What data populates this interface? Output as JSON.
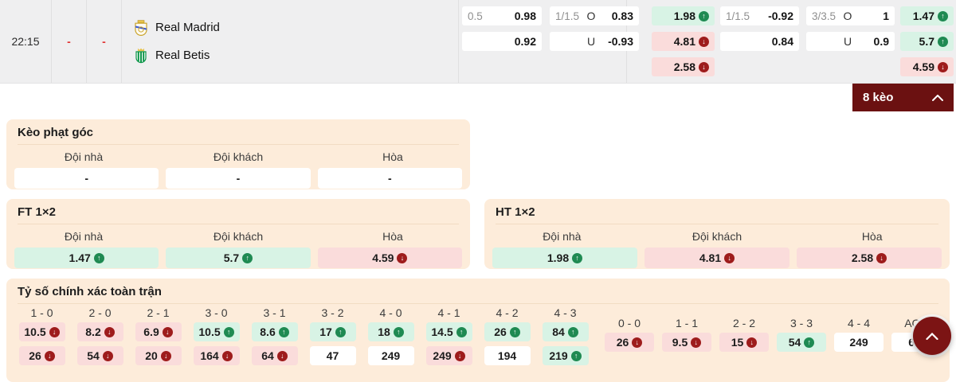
{
  "match": {
    "time": "22:15",
    "home_score": "-",
    "away_score": "-",
    "home_team": "Real Madrid",
    "away_team": "Real Betis",
    "odds_groups": [
      {
        "id": "hdp-a",
        "cells": [
          {
            "line": "0.5",
            "odds": "0.98"
          },
          {
            "line": "",
            "odds": "0.92"
          }
        ]
      },
      {
        "id": "ou-a",
        "cells": [
          {
            "line": "1/1.5",
            "side": "O",
            "odds": "0.83"
          },
          {
            "line": "",
            "side": "U",
            "odds": "-0.93"
          }
        ]
      },
      {
        "id": "x12-a",
        "cells": [
          {
            "odds": "1.98",
            "trend": "up"
          },
          {
            "odds": "4.81",
            "trend": "down"
          },
          {
            "odds": "2.58",
            "trend": "down"
          }
        ]
      },
      {
        "id": "hdp-b",
        "cells": [
          {
            "line": "1/1.5",
            "odds": "-0.92"
          },
          {
            "line": "",
            "odds": "0.84"
          }
        ]
      },
      {
        "id": "ou-b",
        "cells": [
          {
            "line": "3/3.5",
            "side": "O",
            "odds": "1"
          },
          {
            "line": "",
            "side": "U",
            "odds": "0.9"
          }
        ]
      },
      {
        "id": "x12-b",
        "cells": [
          {
            "odds": "1.47",
            "trend": "up"
          },
          {
            "odds": "5.7",
            "trend": "up"
          },
          {
            "odds": "4.59",
            "trend": "down"
          }
        ]
      }
    ]
  },
  "toggle": {
    "label": "8 kèo"
  },
  "panels": {
    "corner": {
      "title": "Kèo phạt góc",
      "headers": [
        "Đội nhà",
        "Đội khách",
        "Hòa"
      ],
      "cells": [
        {
          "odds": "-"
        },
        {
          "odds": "-"
        },
        {
          "odds": "-"
        }
      ]
    },
    "ft": {
      "title": "FT 1×2",
      "headers": [
        "Đội nhà",
        "Đội khách",
        "Hòa"
      ],
      "cells": [
        {
          "odds": "1.47",
          "trend": "up"
        },
        {
          "odds": "5.7",
          "trend": "up"
        },
        {
          "odds": "4.59",
          "trend": "down"
        }
      ]
    },
    "ht": {
      "title": "HT 1×2",
      "headers": [
        "Đội nhà",
        "Đội khách",
        "Hòa"
      ],
      "cells": [
        {
          "odds": "1.98",
          "trend": "up"
        },
        {
          "odds": "4.81",
          "trend": "down"
        },
        {
          "odds": "2.58",
          "trend": "down"
        }
      ]
    },
    "correct_score": {
      "title": "Tỷ số chính xác toàn trận",
      "main_columns": [
        {
          "score": "1 - 0",
          "cells": [
            {
              "odds": "10.5",
              "trend": "down"
            },
            {
              "odds": "26",
              "trend": "down"
            }
          ]
        },
        {
          "score": "2 - 0",
          "cells": [
            {
              "odds": "8.2",
              "trend": "down"
            },
            {
              "odds": "54",
              "trend": "down"
            }
          ]
        },
        {
          "score": "2 - 1",
          "cells": [
            {
              "odds": "6.9",
              "trend": "down"
            },
            {
              "odds": "20",
              "trend": "down"
            }
          ]
        },
        {
          "score": "3 - 0",
          "cells": [
            {
              "odds": "10.5",
              "trend": "up"
            },
            {
              "odds": "164",
              "trend": "down"
            }
          ]
        },
        {
          "score": "3 - 1",
          "cells": [
            {
              "odds": "8.6",
              "trend": "up"
            },
            {
              "odds": "64",
              "trend": "down"
            }
          ]
        },
        {
          "score": "3 - 2",
          "cells": [
            {
              "odds": "17",
              "trend": "up"
            },
            {
              "odds": "47"
            }
          ]
        },
        {
          "score": "4 - 0",
          "cells": [
            {
              "odds": "18",
              "trend": "up"
            },
            {
              "odds": "249"
            }
          ]
        },
        {
          "score": "4 - 1",
          "cells": [
            {
              "odds": "14.5",
              "trend": "up"
            },
            {
              "odds": "249",
              "trend": "down"
            }
          ]
        },
        {
          "score": "4 - 2",
          "cells": [
            {
              "odds": "26",
              "trend": "up"
            },
            {
              "odds": "194"
            }
          ]
        },
        {
          "score": "4 - 3",
          "cells": [
            {
              "odds": "84",
              "trend": "up"
            },
            {
              "odds": "219",
              "trend": "up"
            }
          ]
        }
      ],
      "draw_columns": [
        {
          "score": "0 - 0",
          "cells": [
            {
              "odds": "26",
              "trend": "down"
            }
          ]
        },
        {
          "score": "1 - 1",
          "cells": [
            {
              "odds": "9.5",
              "trend": "down"
            }
          ]
        },
        {
          "score": "2 - 2",
          "cells": [
            {
              "odds": "15",
              "trend": "down"
            }
          ]
        },
        {
          "score": "3 - 3",
          "cells": [
            {
              "odds": "54",
              "trend": "up"
            }
          ]
        },
        {
          "score": "4 - 4",
          "cells": [
            {
              "odds": "249"
            }
          ]
        },
        {
          "score": "AOS",
          "cells": [
            {
              "odds": "6.1"
            }
          ]
        }
      ]
    }
  },
  "colors": {
    "accent_maroon": "#6b1111",
    "up_green": "#1f8a52",
    "down_red": "#9e1c1c",
    "cell_green": "#d8f3e5",
    "cell_pink": "#fadcdb",
    "panel_peach": "#fdecda"
  }
}
